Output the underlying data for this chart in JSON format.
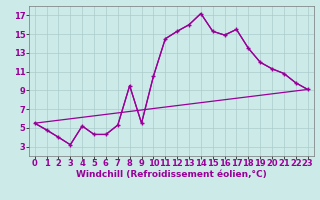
{
  "background_color": "#cceae7",
  "line_color": "#990099",
  "grid_color": "#aacccc",
  "xlabel": "Windchill (Refroidissement éolien,°C)",
  "xlabel_fontsize": 6.5,
  "tick_fontsize": 6,
  "xlim": [
    -0.5,
    23.5
  ],
  "ylim": [
    2,
    18
  ],
  "xticks": [
    0,
    1,
    2,
    3,
    4,
    5,
    6,
    7,
    8,
    9,
    10,
    11,
    12,
    13,
    14,
    15,
    16,
    17,
    18,
    19,
    20,
    21,
    22,
    23
  ],
  "yticks": [
    3,
    5,
    7,
    9,
    11,
    13,
    15,
    17
  ],
  "series1_x": [
    0,
    1,
    2,
    3,
    4,
    5,
    6,
    7,
    8,
    9,
    10,
    11,
    12,
    13,
    14,
    15,
    16,
    17,
    18,
    19,
    20,
    21,
    22,
    23
  ],
  "series1_y": [
    5.5,
    4.8,
    4.0,
    3.2,
    5.2,
    4.3,
    4.3,
    5.3,
    9.5,
    5.5,
    10.5,
    14.5,
    15.3,
    16.0,
    17.2,
    15.3,
    14.9,
    15.5,
    13.5,
    12.0,
    11.3,
    10.8,
    9.8,
    9.1
  ],
  "series2_x": [
    0,
    23
  ],
  "series2_y": [
    5.5,
    9.1
  ],
  "series3_x": [
    0,
    2,
    3,
    4,
    5,
    6,
    7,
    8,
    9,
    10,
    11,
    12,
    13,
    14,
    15,
    16,
    17,
    18,
    19,
    20,
    21,
    22,
    23
  ],
  "series3_y": [
    5.5,
    4.0,
    3.2,
    5.2,
    4.3,
    4.3,
    5.3,
    9.5,
    5.5,
    10.5,
    14.5,
    15.3,
    16.0,
    17.2,
    15.3,
    14.9,
    15.5,
    13.5,
    12.0,
    11.3,
    10.8,
    9.8,
    9.1
  ]
}
